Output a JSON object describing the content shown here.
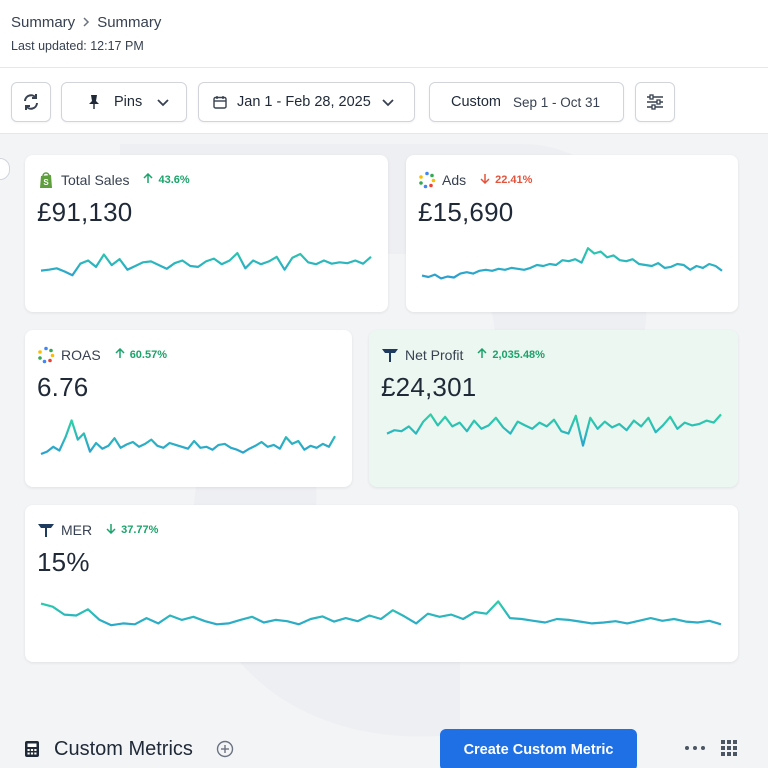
{
  "header": {
    "breadcrumb": [
      "Summary",
      "Summary"
    ],
    "last_updated": "Last updated: 12:17 PM"
  },
  "toolbar": {
    "pins_label": "Pins",
    "date_range": "Jan 1 - Feb 28, 2025",
    "compare_label": "Custom",
    "compare_range": "Sep 1 - Oct 31"
  },
  "colors": {
    "accent_blue": "#1f6fe5",
    "positive": "#1aa36a",
    "negative": "#e5533c",
    "spark_blue": "#2b8fe0",
    "spark_teal": "#2dd4a3"
  },
  "metrics": [
    {
      "id": "total-sales",
      "icon": "shopify-icon",
      "label": "Total Sales",
      "delta": "43.6%",
      "direction": "up",
      "value": "£91,130",
      "trend": [
        0.4,
        0.42,
        0.45,
        0.38,
        0.3,
        0.55,
        0.62,
        0.48,
        0.75,
        0.52,
        0.65,
        0.42,
        0.5,
        0.58,
        0.6,
        0.52,
        0.44,
        0.56,
        0.62,
        0.5,
        0.48,
        0.6,
        0.66,
        0.54,
        0.62,
        0.78,
        0.45,
        0.62,
        0.54,
        0.6,
        0.7,
        0.42,
        0.68,
        0.76,
        0.58,
        0.54,
        0.62,
        0.55,
        0.58,
        0.56,
        0.62,
        0.55,
        0.7
      ]
    },
    {
      "id": "ads",
      "icon": "google-ads-icon",
      "label": "Ads",
      "delta": "22.41%",
      "direction": "down",
      "value": "£15,690",
      "trend": [
        0.28,
        0.25,
        0.3,
        0.22,
        0.26,
        0.24,
        0.32,
        0.35,
        0.32,
        0.38,
        0.4,
        0.38,
        0.42,
        0.4,
        0.44,
        0.42,
        0.4,
        0.44,
        0.5,
        0.48,
        0.52,
        0.5,
        0.6,
        0.58,
        0.62,
        0.55,
        0.85,
        0.74,
        0.78,
        0.66,
        0.7,
        0.6,
        0.58,
        0.62,
        0.52,
        0.5,
        0.48,
        0.54,
        0.44,
        0.46,
        0.52,
        0.5,
        0.4,
        0.48,
        0.44,
        0.52,
        0.48,
        0.38
      ]
    },
    {
      "id": "roas",
      "icon": "google-ads-icon",
      "label": "ROAS",
      "delta": "60.57%",
      "direction": "up",
      "value": "6.76",
      "trend": [
        0.25,
        0.3,
        0.4,
        0.32,
        0.6,
        0.95,
        0.55,
        0.68,
        0.3,
        0.48,
        0.36,
        0.42,
        0.58,
        0.38,
        0.45,
        0.5,
        0.4,
        0.46,
        0.55,
        0.42,
        0.38,
        0.48,
        0.44,
        0.4,
        0.36,
        0.52,
        0.38,
        0.4,
        0.34,
        0.44,
        0.46,
        0.38,
        0.34,
        0.28,
        0.36,
        0.42,
        0.5,
        0.4,
        0.44,
        0.36,
        0.6,
        0.46,
        0.52,
        0.34,
        0.42,
        0.38,
        0.46,
        0.4,
        0.62
      ]
    },
    {
      "id": "net-profit",
      "icon": "triple-whale-icon",
      "label": "Net Profit",
      "delta": "2,035.48%",
      "direction": "up",
      "value": "£24,301",
      "trend": [
        0.55,
        0.62,
        0.6,
        0.7,
        0.55,
        0.8,
        0.95,
        0.72,
        0.9,
        0.7,
        0.78,
        0.6,
        0.82,
        0.65,
        0.72,
        0.88,
        0.68,
        0.55,
        0.8,
        0.72,
        0.65,
        0.78,
        0.7,
        0.84,
        0.6,
        0.55,
        0.92,
        0.3,
        0.88,
        0.65,
        0.8,
        0.68,
        0.75,
        0.62,
        0.82,
        0.7,
        0.88,
        0.58,
        0.72,
        0.9,
        0.65,
        0.78,
        0.72,
        0.75,
        0.82,
        0.78,
        0.95
      ]
    },
    {
      "id": "mer",
      "icon": "triple-whale-icon",
      "label": "MER",
      "delta": "37.77%",
      "direction": "down",
      "value": "15%",
      "trend": [
        0.85,
        0.78,
        0.6,
        0.58,
        0.72,
        0.48,
        0.36,
        0.4,
        0.38,
        0.52,
        0.4,
        0.58,
        0.48,
        0.55,
        0.45,
        0.38,
        0.4,
        0.48,
        0.55,
        0.42,
        0.48,
        0.45,
        0.38,
        0.5,
        0.56,
        0.44,
        0.52,
        0.45,
        0.58,
        0.5,
        0.7,
        0.56,
        0.4,
        0.62,
        0.55,
        0.6,
        0.5,
        0.66,
        0.62,
        0.9,
        0.52,
        0.5,
        0.46,
        0.42,
        0.5,
        0.48,
        0.44,
        0.4,
        0.42,
        0.45,
        0.4,
        0.46,
        0.52,
        0.46,
        0.5,
        0.44,
        0.42,
        0.46,
        0.38
      ]
    }
  ],
  "custom_metrics": {
    "title": "Custom Metrics",
    "create_button": "Create Custom Metric"
  }
}
